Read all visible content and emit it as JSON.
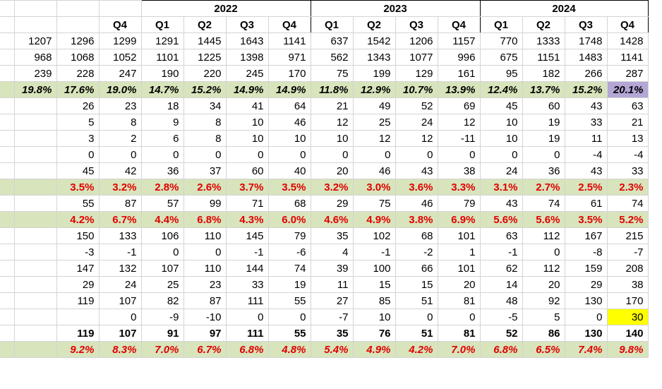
{
  "years": [
    "2022",
    "2023",
    "2024"
  ],
  "quarter_headers": [
    "Q4",
    "Q1",
    "Q2",
    "Q3",
    "Q4",
    "Q1",
    "Q2",
    "Q3",
    "Q4",
    "Q1",
    "Q2",
    "Q3",
    "Q4"
  ],
  "rows": [
    {
      "style": "plain",
      "cells": [
        "1207",
        "1296",
        "1299",
        "1291",
        "1445",
        "1643",
        "1141",
        "637",
        "1542",
        "1206",
        "1157",
        "770",
        "1333",
        "1748",
        "1428"
      ]
    },
    {
      "style": "plain",
      "cells": [
        "968",
        "1068",
        "1052",
        "1101",
        "1225",
        "1398",
        "971",
        "562",
        "1343",
        "1077",
        "996",
        "675",
        "1151",
        "1483",
        "1141"
      ]
    },
    {
      "style": "plain",
      "cells": [
        "239",
        "228",
        "247",
        "190",
        "220",
        "245",
        "170",
        "75",
        "199",
        "129",
        "161",
        "95",
        "182",
        "266",
        "287"
      ]
    },
    {
      "style": "pct_black",
      "cells": [
        "19.8%",
        "17.6%",
        "19.0%",
        "14.7%",
        "15.2%",
        "14.9%",
        "14.9%",
        "11.8%",
        "12.9%",
        "10.7%",
        "13.9%",
        "12.4%",
        "13.7%",
        "15.2%",
        "20.1%"
      ]
    },
    {
      "style": "plain",
      "cells": [
        "",
        "26",
        "23",
        "18",
        "34",
        "41",
        "64",
        "21",
        "49",
        "52",
        "69",
        "45",
        "60",
        "43",
        "63"
      ]
    },
    {
      "style": "plain",
      "cells": [
        "",
        "5",
        "8",
        "9",
        "8",
        "10",
        "46",
        "12",
        "25",
        "24",
        "12",
        "10",
        "19",
        "33",
        "21"
      ]
    },
    {
      "style": "plain",
      "cells": [
        "",
        "3",
        "2",
        "6",
        "8",
        "10",
        "10",
        "10",
        "12",
        "12",
        "-11",
        "10",
        "19",
        "11",
        "13"
      ]
    },
    {
      "style": "plain",
      "cells": [
        "",
        "0",
        "0",
        "0",
        "0",
        "0",
        "0",
        "0",
        "0",
        "0",
        "0",
        "0",
        "0",
        "-4",
        "-4"
      ]
    },
    {
      "style": "plain",
      "cells": [
        "",
        "45",
        "42",
        "36",
        "37",
        "60",
        "40",
        "20",
        "46",
        "43",
        "38",
        "24",
        "36",
        "43",
        "33"
      ]
    },
    {
      "style": "pct_red",
      "cells": [
        "",
        "3.5%",
        "3.2%",
        "2.8%",
        "2.6%",
        "3.7%",
        "3.5%",
        "3.2%",
        "3.0%",
        "3.6%",
        "3.3%",
        "3.1%",
        "2.7%",
        "2.5%",
        "2.3%"
      ]
    },
    {
      "style": "plain",
      "cells": [
        "",
        "55",
        "87",
        "57",
        "99",
        "71",
        "68",
        "29",
        "75",
        "46",
        "79",
        "43",
        "74",
        "61",
        "74"
      ]
    },
    {
      "style": "pct_red",
      "cells": [
        "",
        "4.2%",
        "6.7%",
        "4.4%",
        "6.8%",
        "4.3%",
        "6.0%",
        "4.6%",
        "4.9%",
        "3.8%",
        "6.9%",
        "5.6%",
        "5.6%",
        "3.5%",
        "5.2%"
      ]
    },
    {
      "style": "plain",
      "cells": [
        "",
        "150",
        "133",
        "106",
        "110",
        "145",
        "79",
        "35",
        "102",
        "68",
        "101",
        "63",
        "112",
        "167",
        "215"
      ]
    },
    {
      "style": "plain",
      "cells": [
        "",
        "-3",
        "-1",
        "0",
        "0",
        "-1",
        "-6",
        "4",
        "-1",
        "-2",
        "1",
        "-1",
        "0",
        "-8",
        "-7"
      ]
    },
    {
      "style": "plain",
      "cells": [
        "",
        "147",
        "132",
        "107",
        "110",
        "144",
        "74",
        "39",
        "100",
        "66",
        "101",
        "62",
        "112",
        "159",
        "208"
      ]
    },
    {
      "style": "plain",
      "cells": [
        "",
        "29",
        "24",
        "25",
        "23",
        "33",
        "19",
        "11",
        "15",
        "15",
        "20",
        "14",
        "20",
        "29",
        "38"
      ]
    },
    {
      "style": "plain",
      "cells": [
        "",
        "119",
        "107",
        "82",
        "87",
        "111",
        "55",
        "27",
        "85",
        "51",
        "81",
        "48",
        "92",
        "130",
        "170"
      ]
    },
    {
      "style": "plain",
      "cells": [
        "",
        "",
        "0",
        "-9",
        "-10",
        "0",
        "0",
        "-7",
        "10",
        "0",
        "0",
        "-5",
        "5",
        "0",
        "30"
      ]
    },
    {
      "style": "bold",
      "cells": [
        "",
        "119",
        "107",
        "91",
        "97",
        "111",
        "55",
        "35",
        "76",
        "51",
        "81",
        "52",
        "86",
        "130",
        "140"
      ]
    },
    {
      "style": "ital_red",
      "cells": [
        "",
        "9.2%",
        "8.3%",
        "7.0%",
        "6.7%",
        "6.8%",
        "4.8%",
        "5.4%",
        "4.9%",
        "4.2%",
        "7.0%",
        "6.8%",
        "6.5%",
        "7.4%",
        "9.8%"
      ]
    }
  ],
  "highlight_colors": {
    "band": "#d8e4bc",
    "purple": "#b4a7d6",
    "yellow": "#ffff00",
    "red_text": "#e00000"
  }
}
